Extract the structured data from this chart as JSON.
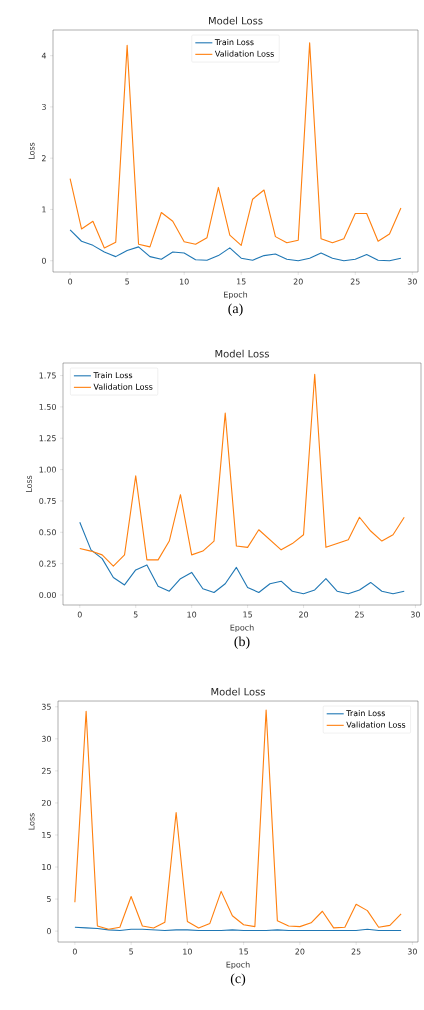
{
  "chart_data": [
    {
      "type": "line",
      "title": "Model Loss",
      "xlabel": "Epoch",
      "ylabel": "Loss",
      "x": [
        0,
        1,
        2,
        3,
        4,
        5,
        6,
        7,
        8,
        9,
        10,
        11,
        12,
        13,
        14,
        15,
        16,
        17,
        18,
        19,
        20,
        21,
        22,
        23,
        24,
        25,
        26,
        27,
        28,
        29
      ],
      "series": [
        {
          "name": "Train Loss",
          "color": "#1f77b4",
          "values": [
            0.6,
            0.38,
            0.3,
            0.17,
            0.08,
            0.2,
            0.27,
            0.08,
            0.03,
            0.17,
            0.15,
            0.02,
            0.01,
            0.1,
            0.25,
            0.05,
            0.01,
            0.1,
            0.13,
            0.03,
            0.0,
            0.05,
            0.15,
            0.05,
            0.0,
            0.03,
            0.12,
            0.01,
            0.0,
            0.05
          ]
        },
        {
          "name": "Validation Loss",
          "color": "#ff7f0e",
          "values": [
            1.6,
            0.62,
            0.77,
            0.25,
            0.36,
            4.2,
            0.32,
            0.27,
            0.94,
            0.77,
            0.37,
            0.32,
            0.45,
            1.43,
            0.5,
            0.3,
            1.2,
            1.38,
            0.47,
            0.35,
            0.4,
            4.25,
            0.43,
            0.35,
            0.43,
            0.92,
            0.92,
            0.38,
            0.52,
            1.03
          ]
        }
      ],
      "xlim": [
        -1.5,
        30.5
      ],
      "ylim": [
        -0.22,
        4.5
      ],
      "xticks": [
        0,
        5,
        10,
        15,
        20,
        25,
        30
      ],
      "yticks": [
        0,
        1,
        2,
        3,
        4
      ],
      "legend": "top",
      "grid": false,
      "annotations": [
        "(a)"
      ]
    },
    {
      "type": "line",
      "title": "Model Loss",
      "xlabel": "Epoch",
      "ylabel": "Loss",
      "x": [
        0,
        1,
        2,
        3,
        4,
        5,
        6,
        7,
        8,
        9,
        10,
        11,
        12,
        13,
        14,
        15,
        16,
        17,
        18,
        19,
        20,
        21,
        22,
        23,
        24,
        25,
        26,
        27,
        28,
        29
      ],
      "series": [
        {
          "name": "Train Loss",
          "color": "#1f77b4",
          "values": [
            0.58,
            0.36,
            0.29,
            0.14,
            0.08,
            0.2,
            0.24,
            0.07,
            0.03,
            0.13,
            0.18,
            0.05,
            0.02,
            0.09,
            0.22,
            0.06,
            0.02,
            0.09,
            0.11,
            0.03,
            0.01,
            0.04,
            0.13,
            0.03,
            0.01,
            0.04,
            0.1,
            0.03,
            0.01,
            0.03
          ]
        },
        {
          "name": "Validation Loss",
          "color": "#ff7f0e",
          "values": [
            0.37,
            0.35,
            0.32,
            0.23,
            0.32,
            0.95,
            0.28,
            0.28,
            0.43,
            0.8,
            0.32,
            0.35,
            0.43,
            1.45,
            0.39,
            0.38,
            0.52,
            0.44,
            0.36,
            0.41,
            0.48,
            1.76,
            0.38,
            0.41,
            0.44,
            0.62,
            0.51,
            0.43,
            0.48,
            0.62
          ]
        }
      ],
      "xlim": [
        -1.5,
        30.5
      ],
      "ylim": [
        -0.08,
        1.85
      ],
      "xticks": [
        0,
        5,
        10,
        15,
        20,
        25,
        30
      ],
      "yticks": [
        {
          "value": 0,
          "label": "0.00"
        },
        {
          "value": 0.25,
          "label": "0.25"
        },
        {
          "value": 0.5,
          "label": "0.50"
        },
        {
          "value": 0.75,
          "label": "0.75"
        },
        {
          "value": 1,
          "label": "1.00"
        },
        {
          "value": 1.25,
          "label": "1.25"
        },
        {
          "value": 1.5,
          "label": "1.50"
        },
        {
          "value": 1.75,
          "label": "1.75"
        }
      ],
      "legend": "top left",
      "grid": false,
      "annotations": [
        "(b)"
      ]
    },
    {
      "type": "line",
      "title": "Model Loss",
      "xlabel": "Epoch",
      "ylabel": "Loss",
      "x": [
        0,
        1,
        2,
        3,
        4,
        5,
        6,
        7,
        8,
        9,
        10,
        11,
        12,
        13,
        14,
        15,
        16,
        17,
        18,
        19,
        20,
        21,
        22,
        23,
        24,
        25,
        26,
        27,
        28,
        29
      ],
      "series": [
        {
          "name": "Train Loss",
          "color": "#1f77b4",
          "values": [
            0.6,
            0.5,
            0.4,
            0.2,
            0.1,
            0.3,
            0.3,
            0.2,
            0.1,
            0.2,
            0.2,
            0.1,
            0.1,
            0.1,
            0.2,
            0.1,
            0.1,
            0.1,
            0.2,
            0.1,
            0.1,
            0.1,
            0.1,
            0.1,
            0.1,
            0.1,
            0.3,
            0.1,
            0.1,
            0.1
          ]
        },
        {
          "name": "Validation Loss",
          "color": "#ff7f0e",
          "values": [
            4.5,
            34.3,
            0.8,
            0.3,
            0.6,
            5.4,
            0.8,
            0.5,
            1.4,
            18.5,
            1.5,
            0.5,
            1.2,
            6.2,
            2.4,
            1.0,
            0.7,
            34.5,
            1.6,
            0.8,
            0.7,
            1.3,
            3.1,
            0.5,
            0.6,
            4.2,
            3.2,
            0.6,
            0.9,
            2.7
          ]
        }
      ],
      "xlim": [
        -1.5,
        30.5
      ],
      "ylim": [
        -1.7,
        35.9
      ],
      "xticks": [
        0,
        5,
        10,
        15,
        20,
        25,
        30
      ],
      "yticks": [
        0,
        5,
        10,
        15,
        20,
        25,
        30,
        35
      ],
      "legend": "top right",
      "grid": false,
      "annotations": [
        "(c)"
      ]
    }
  ]
}
